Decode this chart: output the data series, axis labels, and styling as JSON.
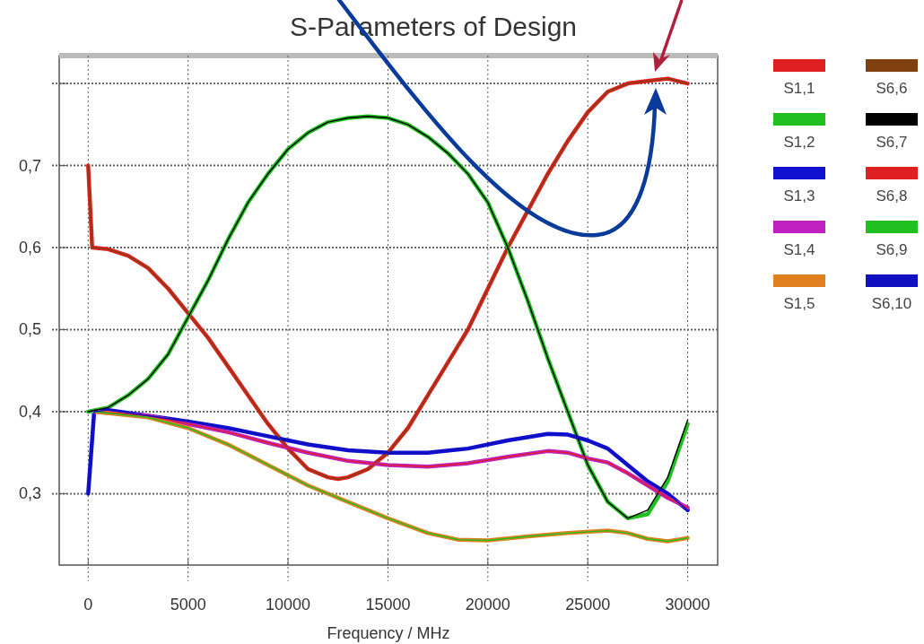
{
  "chart_data": {
    "type": "line",
    "title": "S-Parameters of Design",
    "xlabel": "Frequency / MHz",
    "xlim": [
      -1450,
      31500
    ],
    "ylim": [
      0.213,
      0.834
    ],
    "xticks": [
      0,
      5000,
      10000,
      15000,
      20000,
      25000,
      30000
    ],
    "yticks": [
      {
        "value": 0.3,
        "label": "0,3"
      },
      {
        "value": 0.4,
        "label": "0,4"
      },
      {
        "value": 0.5,
        "label": "0,5"
      },
      {
        "value": 0.6,
        "label": "0,6"
      },
      {
        "value": 0.7,
        "label": "0,7"
      },
      {
        "value": 0.8,
        "label": null
      }
    ],
    "grid": true,
    "legend": "right",
    "line_style": "solid",
    "marker": "none",
    "series": [
      {
        "name": "S1,1",
        "color": "#e02020",
        "x": [
          0,
          200,
          1000,
          2000,
          3000,
          4000,
          5000,
          6000,
          7000,
          8000,
          9000,
          10000,
          11000,
          12000,
          12500,
          13000,
          14000,
          15000,
          16000,
          17000,
          18000,
          19000,
          20000,
          21000,
          22000,
          23000,
          24000,
          25000,
          26000,
          27000,
          28000,
          29000,
          30000
        ],
        "values": [
          0.7,
          0.6,
          0.598,
          0.59,
          0.575,
          0.55,
          0.52,
          0.49,
          0.455,
          0.42,
          0.385,
          0.355,
          0.33,
          0.32,
          0.318,
          0.32,
          0.33,
          0.35,
          0.38,
          0.42,
          0.46,
          0.5,
          0.55,
          0.6,
          0.645,
          0.69,
          0.73,
          0.765,
          0.79,
          0.8,
          0.803,
          0.806,
          0.8
        ]
      },
      {
        "name": "S1,2",
        "color": "#20c020",
        "x": [
          0,
          1000,
          2000,
          3000,
          4000,
          5000,
          6000,
          7000,
          8000,
          9000,
          10000,
          11000,
          12000,
          13000,
          14000,
          15000,
          16000,
          17000,
          18000,
          19000,
          20000,
          21000,
          22000,
          23000,
          24000,
          25000,
          26000,
          27000,
          28000,
          29000,
          30000
        ],
        "values": [
          0.4,
          0.405,
          0.42,
          0.44,
          0.47,
          0.515,
          0.56,
          0.61,
          0.655,
          0.69,
          0.72,
          0.74,
          0.753,
          0.758,
          0.76,
          0.758,
          0.75,
          0.735,
          0.715,
          0.69,
          0.655,
          0.6,
          0.535,
          0.465,
          0.4,
          0.335,
          0.29,
          0.27,
          0.275,
          0.315,
          0.385
        ]
      },
      {
        "name": "S1,3",
        "color": "#1010d0",
        "x": [
          0,
          300,
          1000,
          3000,
          5000,
          7000,
          9000,
          11000,
          13000,
          15000,
          17000,
          19000,
          21000,
          23000,
          24000,
          25000,
          26000,
          27000,
          28000,
          29000,
          30000
        ],
        "values": [
          0.3,
          0.4,
          0.402,
          0.395,
          0.388,
          0.38,
          0.37,
          0.36,
          0.353,
          0.35,
          0.35,
          0.355,
          0.365,
          0.373,
          0.372,
          0.365,
          0.355,
          0.335,
          0.315,
          0.3,
          0.28
        ]
      },
      {
        "name": "S1,4",
        "color": "#c020c0",
        "x": [
          300,
          3000,
          5000,
          7000,
          9000,
          11000,
          13000,
          15000,
          17000,
          19000,
          21000,
          23000,
          24000,
          25000,
          26000,
          27000,
          28000,
          29000,
          30000
        ],
        "values": [
          0.4,
          0.395,
          0.385,
          0.375,
          0.362,
          0.35,
          0.34,
          0.335,
          0.333,
          0.337,
          0.345,
          0.352,
          0.35,
          0.343,
          0.338,
          0.325,
          0.31,
          0.295,
          0.283
        ]
      },
      {
        "name": "S1,5",
        "color": "#e08020",
        "x": [
          300,
          3000,
          5000,
          7000,
          9000,
          11000,
          13000,
          15000,
          17000,
          18500,
          20000,
          22000,
          24000,
          26000,
          27000,
          28000,
          29000,
          30000
        ],
        "values": [
          0.4,
          0.393,
          0.38,
          0.36,
          0.335,
          0.31,
          0.29,
          0.27,
          0.252,
          0.244,
          0.243,
          0.248,
          0.252,
          0.255,
          0.252,
          0.245,
          0.242,
          0.246
        ]
      },
      {
        "name": "S6,6",
        "color": "#804010",
        "x": [
          0,
          200,
          1000,
          2000,
          3000,
          4000,
          5000,
          6000,
          7000,
          8000,
          9000,
          10000,
          11000,
          12000,
          12500,
          13000,
          14000,
          15000,
          16000,
          17000,
          18000,
          19000,
          20000,
          21000,
          22000,
          23000,
          24000,
          25000,
          26000,
          27000,
          28000,
          29000,
          30000
        ],
        "values": [
          0.7,
          0.6,
          0.598,
          0.59,
          0.575,
          0.55,
          0.52,
          0.49,
          0.455,
          0.42,
          0.385,
          0.355,
          0.33,
          0.32,
          0.318,
          0.32,
          0.33,
          0.35,
          0.38,
          0.42,
          0.46,
          0.5,
          0.55,
          0.6,
          0.645,
          0.69,
          0.73,
          0.765,
          0.79,
          0.8,
          0.803,
          0.806,
          0.8
        ]
      },
      {
        "name": "S6,7",
        "color": "#000000",
        "x": [
          0,
          1000,
          2000,
          3000,
          4000,
          5000,
          6000,
          7000,
          8000,
          9000,
          10000,
          11000,
          12000,
          13000,
          14000,
          15000,
          16000,
          17000,
          18000,
          19000,
          20000,
          21000,
          22000,
          23000,
          24000,
          25000,
          26000,
          27000,
          28000,
          29000,
          30000
        ],
        "values": [
          0.4,
          0.405,
          0.42,
          0.44,
          0.47,
          0.515,
          0.56,
          0.61,
          0.655,
          0.69,
          0.72,
          0.74,
          0.753,
          0.758,
          0.76,
          0.758,
          0.75,
          0.735,
          0.715,
          0.69,
          0.655,
          0.6,
          0.535,
          0.465,
          0.4,
          0.335,
          0.29,
          0.27,
          0.28,
          0.32,
          0.39
        ]
      },
      {
        "name": "S6,8",
        "color": "#e02020",
        "x": [
          300,
          3000,
          5000,
          7000,
          9000,
          11000,
          13000,
          15000,
          17000,
          19000,
          21000,
          23000,
          24000,
          25000,
          26000,
          27000,
          28000,
          29000,
          30000
        ],
        "values": [
          0.4,
          0.395,
          0.385,
          0.375,
          0.362,
          0.35,
          0.34,
          0.335,
          0.333,
          0.337,
          0.345,
          0.352,
          0.35,
          0.343,
          0.338,
          0.325,
          0.31,
          0.295,
          0.283
        ]
      },
      {
        "name": "S6,9",
        "color": "#20c020",
        "x": [
          300,
          3000,
          5000,
          7000,
          9000,
          11000,
          13000,
          15000,
          17000,
          18500,
          20000,
          22000,
          24000,
          26000,
          27000,
          28000,
          29000,
          30000
        ],
        "values": [
          0.4,
          0.393,
          0.38,
          0.36,
          0.335,
          0.31,
          0.29,
          0.27,
          0.252,
          0.244,
          0.243,
          0.248,
          0.252,
          0.255,
          0.252,
          0.245,
          0.242,
          0.246
        ]
      },
      {
        "name": "S6,10",
        "color": "#1010c0",
        "x": [
          0,
          300,
          1000,
          3000,
          5000,
          7000,
          9000,
          11000,
          13000,
          15000,
          17000,
          19000,
          21000,
          23000,
          24000,
          25000,
          26000,
          27000,
          28000,
          29000,
          30000
        ],
        "values": [
          0.3,
          0.4,
          0.402,
          0.395,
          0.388,
          0.38,
          0.37,
          0.36,
          0.353,
          0.35,
          0.35,
          0.355,
          0.365,
          0.373,
          0.372,
          0.365,
          0.355,
          0.335,
          0.315,
          0.3,
          0.28
        ]
      }
    ]
  }
}
